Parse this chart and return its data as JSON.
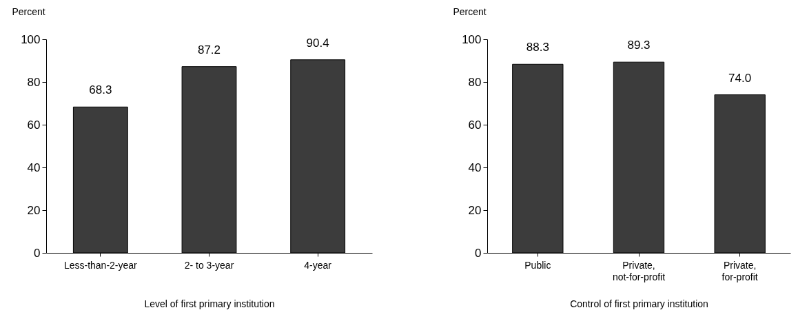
{
  "chart_data": [
    {
      "type": "bar",
      "ylabel": "Percent",
      "xlabel": "Level of first primary institution",
      "categories": [
        "Less-than-2-year",
        "2- to 3-year",
        "4-year"
      ],
      "values": [
        68.3,
        87.2,
        90.4
      ],
      "color": "#3c3c3c",
      "ylim": [
        0,
        100
      ],
      "yticks": [
        0,
        20,
        40,
        60,
        80,
        100
      ],
      "grid": false,
      "data_labels": true
    },
    {
      "type": "bar",
      "ylabel": "Percent",
      "xlabel": "Control of first primary institution",
      "categories": [
        "Public",
        "Private, not-for-profit",
        "Private, for-profit"
      ],
      "values": [
        88.3,
        89.3,
        74.0
      ],
      "value_labels": [
        "88.3",
        "89.3",
        "74.0"
      ],
      "color": "#3c3c3c",
      "ylim": [
        0,
        100
      ],
      "yticks": [
        0,
        20,
        40,
        60,
        80,
        100
      ],
      "grid": false
    }
  ]
}
